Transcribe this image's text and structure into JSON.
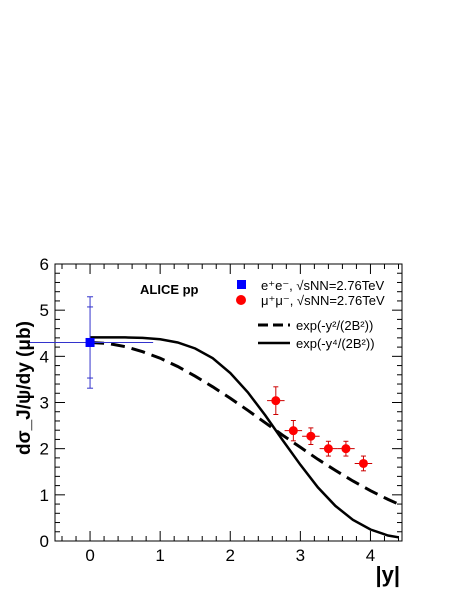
{
  "chart_data": {
    "type": "scatter",
    "annotation": "ALICE pp",
    "xlabel": "|y|",
    "ylabel": "dσ_J/ψ/dy (μb)",
    "xlim": [
      -0.5,
      4.45
    ],
    "ylim": [
      0,
      6
    ],
    "x_ticks": [
      "0",
      "1",
      "2",
      "3",
      "4"
    ],
    "y_ticks": [
      "0",
      "1",
      "2",
      "3",
      "4",
      "5",
      "6"
    ],
    "grid": false,
    "legend_position": "top-right",
    "colors": {
      "ee": "#0000ff",
      "mumu": "#ff0000",
      "curve": "#000000"
    },
    "series": [
      {
        "name": "e⁺e⁻, √sNN=2.76TeV",
        "marker": "square",
        "points": [
          {
            "x": 0.0,
            "y": 4.3,
            "xerr": 0.9,
            "yerr_stat": 0.77,
            "yerr_sys": 0.99
          }
        ]
      },
      {
        "name": "μ⁺μ⁻, √sNN=2.76TeV",
        "marker": "circle",
        "points": [
          {
            "x": 2.65,
            "y": 3.04,
            "xerr": 0.125,
            "yerr": 0.3
          },
          {
            "x": 2.9,
            "y": 2.39,
            "xerr": 0.125,
            "yerr": 0.22
          },
          {
            "x": 3.15,
            "y": 2.27,
            "xerr": 0.125,
            "yerr": 0.18
          },
          {
            "x": 3.4,
            "y": 2.0,
            "xerr": 0.125,
            "yerr": 0.16
          },
          {
            "x": 3.65,
            "y": 2.0,
            "xerr": 0.125,
            "yerr": 0.16
          },
          {
            "x": 3.9,
            "y": 1.68,
            "xerr": 0.125,
            "yerr": 0.16
          }
        ]
      },
      {
        "name": "exp(-y²/(2B²))",
        "style": "dashed",
        "x": [
          0,
          0.25,
          0.5,
          0.75,
          1.0,
          1.25,
          1.5,
          1.75,
          2.0,
          2.25,
          2.5,
          2.75,
          3.0,
          3.25,
          3.5,
          3.75,
          4.0,
          4.25,
          4.4
        ],
        "y": [
          4.3,
          4.28,
          4.21,
          4.1,
          3.96,
          3.78,
          3.57,
          3.34,
          3.09,
          2.83,
          2.56,
          2.29,
          2.03,
          1.77,
          1.53,
          1.3,
          1.09,
          0.9,
          0.8
        ]
      },
      {
        "name": "exp(-y⁴/(2B²))",
        "style": "solid",
        "x": [
          0,
          0.25,
          0.5,
          0.75,
          1.0,
          1.25,
          1.5,
          1.75,
          2.0,
          2.25,
          2.5,
          2.75,
          3.0,
          3.25,
          3.5,
          3.75,
          4.0,
          4.25,
          4.4
        ],
        "y": [
          4.41,
          4.41,
          4.41,
          4.4,
          4.37,
          4.3,
          4.17,
          3.96,
          3.64,
          3.22,
          2.72,
          2.18,
          1.65,
          1.16,
          0.76,
          0.46,
          0.25,
          0.12,
          0.08
        ]
      }
    ]
  }
}
